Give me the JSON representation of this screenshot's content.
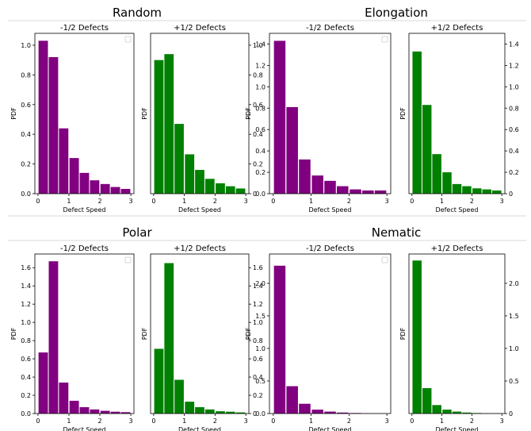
{
  "colors": {
    "neg": "#800080",
    "pos": "#008000",
    "divider": "#d9d9d9"
  },
  "groups": [
    {
      "title": "Random"
    },
    {
      "title": "Elongation"
    },
    {
      "title": "Polar"
    },
    {
      "title": "Nematic"
    }
  ],
  "chart_data": [
    {
      "type": "bar",
      "title": "-1/2 Defects",
      "xlabel": "Defect Speed",
      "ylabel": "PDF",
      "x": [
        0.17,
        0.5,
        0.83,
        1.17,
        1.5,
        1.83,
        2.17,
        2.5,
        2.83
      ],
      "values": [
        1.03,
        0.92,
        0.44,
        0.24,
        0.14,
        0.09,
        0.065,
        0.045,
        0.032
      ],
      "xlim": [
        -0.1,
        3.1
      ],
      "ylim": [
        0,
        1.08
      ],
      "yticks": [
        0,
        0.2,
        0.4,
        0.6,
        0.8,
        1.0
      ],
      "ytick_labels": [
        "0.0",
        "0.2",
        "0.4",
        "0.6",
        "0.8",
        "1.0"
      ],
      "xticks": [
        0,
        1,
        2,
        3
      ],
      "xtick_labels": [
        "0",
        "1",
        "2",
        "3"
      ],
      "yaxis": "left",
      "legend": true
    },
    {
      "type": "bar",
      "title": "+1/2 Defects",
      "xlabel": "Defect Speed",
      "ylabel": "PDF",
      "x": [
        0.17,
        0.5,
        0.83,
        1.17,
        1.5,
        1.83,
        2.17,
        2.5,
        2.83
      ],
      "values": [
        0.9,
        0.94,
        0.47,
        0.265,
        0.16,
        0.1,
        0.07,
        0.05,
        0.035
      ],
      "xlim": [
        -0.1,
        3.1
      ],
      "ylim": [
        0,
        1.08
      ],
      "yticks": [
        0,
        0.2,
        0.4,
        0.6,
        0.8,
        1.0
      ],
      "ytick_labels": [
        "0",
        "0.2",
        "0.4",
        "0.6",
        "0.8",
        "1.0"
      ],
      "xticks": [
        0,
        1,
        2,
        3
      ],
      "xtick_labels": [
        "0",
        "1",
        "2",
        "3"
      ],
      "yaxis": "right",
      "legend": false
    },
    {
      "type": "bar",
      "title": "-1/2 Defects",
      "xlabel": "Defect Speed",
      "ylabel": "PDF",
      "x": [
        0.17,
        0.5,
        0.83,
        1.17,
        1.5,
        1.83,
        2.17,
        2.5,
        2.83
      ],
      "values": [
        1.43,
        0.81,
        0.32,
        0.17,
        0.12,
        0.07,
        0.04,
        0.03,
        0.03
      ],
      "xlim": [
        -0.1,
        3.1
      ],
      "ylim": [
        0,
        1.5
      ],
      "yticks": [
        0,
        0.2,
        0.4,
        0.6,
        0.8,
        1.0,
        1.2,
        1.4
      ],
      "ytick_labels": [
        "0.0",
        "0.2",
        "0.4",
        "0.6",
        "0.8",
        "1.0",
        "1.2",
        "1.4"
      ],
      "xticks": [
        0,
        1,
        2,
        3
      ],
      "xtick_labels": [
        "0",
        "1",
        "2",
        "3"
      ],
      "yaxis": "left",
      "legend": true
    },
    {
      "type": "bar",
      "title": "+1/2 Defects",
      "xlabel": "Defect Speed",
      "ylabel": "PDF",
      "x": [
        0.17,
        0.5,
        0.83,
        1.17,
        1.5,
        1.83,
        2.17,
        2.5,
        2.83
      ],
      "values": [
        1.33,
        0.83,
        0.37,
        0.2,
        0.09,
        0.07,
        0.05,
        0.04,
        0.03
      ],
      "xlim": [
        -0.1,
        3.1
      ],
      "ylim": [
        0,
        1.5
      ],
      "yticks": [
        0,
        0.2,
        0.4,
        0.6,
        0.8,
        1.0,
        1.2,
        1.4
      ],
      "ytick_labels": [
        "0",
        "0.2",
        "0.4",
        "0.6",
        "0.8",
        "1.0",
        "1.2",
        "1.4"
      ],
      "xticks": [
        0,
        1,
        2,
        3
      ],
      "xtick_labels": [
        "0",
        "1",
        "2",
        "3"
      ],
      "yaxis": "right",
      "legend": false
    },
    {
      "type": "bar",
      "title": "-1/2 Defects",
      "xlabel": "Defect Speed",
      "ylabel": "PDF",
      "x": [
        0.17,
        0.5,
        0.83,
        1.17,
        1.5,
        1.83,
        2.17,
        2.5,
        2.83
      ],
      "values": [
        0.67,
        1.67,
        0.34,
        0.14,
        0.07,
        0.045,
        0.03,
        0.02,
        0.015
      ],
      "xlim": [
        -0.1,
        3.1
      ],
      "ylim": [
        0,
        1.75
      ],
      "yticks": [
        0,
        0.2,
        0.4,
        0.6,
        0.8,
        1.0,
        1.2,
        1.4,
        1.6
      ],
      "ytick_labels": [
        "0.0",
        "0.2",
        "0.4",
        "0.6",
        "0.8",
        "1.0",
        "1.2",
        "1.4",
        "1.6"
      ],
      "xticks": [
        0,
        1,
        2,
        3
      ],
      "xtick_labels": [
        "0",
        "1",
        "2",
        "3"
      ],
      "yaxis": "left",
      "legend": true
    },
    {
      "type": "bar",
      "title": "+1/2 Defects",
      "xlabel": "Defect Speed",
      "ylabel": "PDF",
      "x": [
        0.17,
        0.5,
        0.83,
        1.17,
        1.5,
        1.83,
        2.17,
        2.5,
        2.83
      ],
      "values": [
        0.71,
        1.65,
        0.37,
        0.13,
        0.07,
        0.045,
        0.025,
        0.02,
        0.012
      ],
      "xlim": [
        -0.1,
        3.1
      ],
      "ylim": [
        0,
        1.75
      ],
      "yticks": [
        0,
        0.2,
        0.4,
        0.6,
        0.8,
        1.0,
        1.2,
        1.4,
        1.6
      ],
      "ytick_labels": [
        "0",
        "0.2",
        "0.4",
        "0.6",
        "0.8",
        "1.0",
        "1.2",
        "1.4",
        "1.6"
      ],
      "xticks": [
        0,
        1,
        2,
        3
      ],
      "xtick_labels": [
        "0",
        "1",
        "2",
        "3"
      ],
      "yaxis": "right",
      "legend": false
    },
    {
      "type": "bar",
      "title": "-1/2 Defects",
      "xlabel": "Defect Speed",
      "ylabel": "PDF",
      "x": [
        0.17,
        0.5,
        0.83,
        1.17,
        1.5,
        1.83,
        2.17,
        2.5,
        2.83
      ],
      "values": [
        2.27,
        0.42,
        0.15,
        0.06,
        0.03,
        0.015,
        0.008,
        0.004,
        0.003
      ],
      "xlim": [
        -0.1,
        3.1
      ],
      "ylim": [
        0,
        2.45
      ],
      "yticks": [
        0,
        0.5,
        1.0,
        1.5,
        2.0
      ],
      "ytick_labels": [
        "0.0",
        "0.5",
        "1.0",
        "1.5",
        "2.0"
      ],
      "xticks": [
        0,
        1,
        2,
        3
      ],
      "xtick_labels": [
        "0",
        "1",
        "2",
        "3"
      ],
      "yaxis": "left",
      "legend": true
    },
    {
      "type": "bar",
      "title": "+1/2 Defects",
      "xlabel": "Defect Speed",
      "ylabel": "PDF",
      "x": [
        0.17,
        0.5,
        0.83,
        1.17,
        1.5,
        1.83,
        2.17,
        2.5,
        2.83
      ],
      "values": [
        2.35,
        0.39,
        0.13,
        0.06,
        0.03,
        0.015,
        0.008,
        0.004,
        0.003
      ],
      "xlim": [
        -0.1,
        3.1
      ],
      "ylim": [
        0,
        2.45
      ],
      "yticks": [
        0,
        0.5,
        1.0,
        1.5,
        2.0
      ],
      "ytick_labels": [
        "0",
        "0.5",
        "1.0",
        "1.5",
        "2.0"
      ],
      "xticks": [
        0,
        1,
        2,
        3
      ],
      "xtick_labels": [
        "0",
        "1",
        "2",
        "3"
      ],
      "yaxis": "right",
      "legend": false
    }
  ]
}
